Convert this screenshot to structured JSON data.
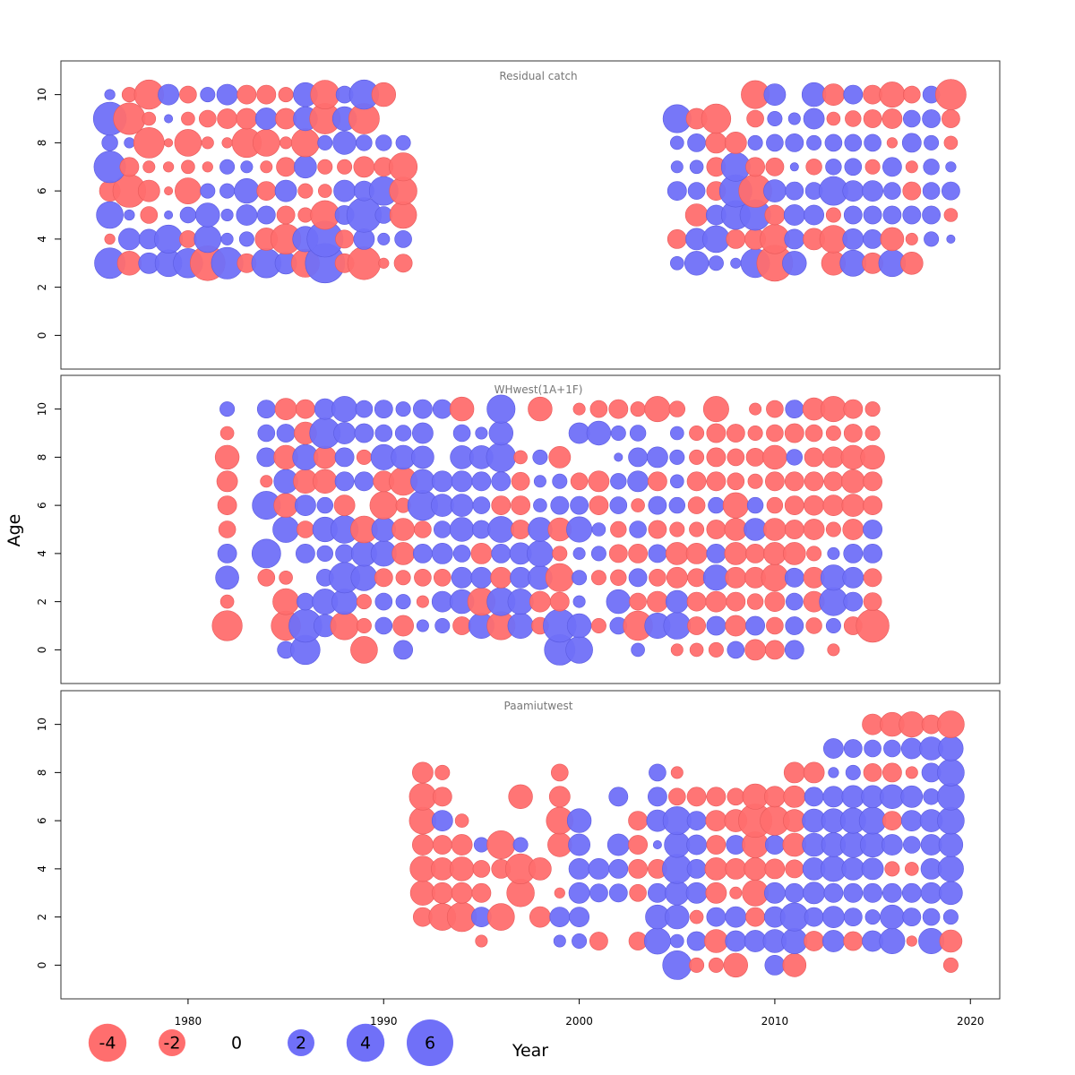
{
  "colors": {
    "positive": "#7070F8",
    "negative": "#FF6E6E",
    "frame": "#333333",
    "title_text": "#777777"
  },
  "chart_data": {
    "type": "bubble-residual",
    "xlabel": "Year",
    "ylabel": "Age",
    "xlim": [
      1973.5,
      2021.5
    ],
    "x_ticks": [
      1980,
      1990,
      2000,
      2010,
      2020
    ],
    "ylim": [
      -1.4,
      11.4
    ],
    "y_ticks": [
      0,
      2,
      4,
      6,
      8,
      10
    ],
    "legend": {
      "values": [
        -4,
        -2,
        0,
        2,
        4,
        6
      ],
      "labels": [
        "-4",
        "-2",
        "0",
        "2",
        "4",
        "6"
      ]
    },
    "panels": [
      {
        "title": "Residual catch",
        "years": [
          1976,
          1977,
          1978,
          1979,
          1980,
          1981,
          1982,
          1983,
          1984,
          1985,
          1986,
          1987,
          1988,
          1989,
          1990,
          1991,
          2005,
          2006,
          2007,
          2008,
          2009,
          2010,
          2011,
          2012,
          2013,
          2014,
          2015,
          2016,
          2017,
          2018,
          2019
        ],
        "ages": [
          3,
          4,
          5,
          6,
          7,
          8,
          9,
          10
        ],
        "residuals": [
          [
            2.6,
            -1.6,
            1.2,
            2.0,
            2.4,
            -3.4,
            2.8,
            -1.0,
            2.4,
            1.3,
            -2.2,
            4.3,
            -1.0,
            -3.0,
            -0.3,
            -0.9,
            0.5,
            1.6,
            0.6,
            0.3,
            2.3,
            -3.6,
            1.6,
            0.0,
            -1.6,
            1.9,
            -1.2,
            2.0,
            -1.4,
            0.0,
            0.0
          ],
          [
            -0.3,
            1.3,
            1.1,
            2.2,
            -0.8,
            2.0,
            0.4,
            0.6,
            -1.4,
            -2.5,
            1.8,
            3.6,
            -0.9,
            1.2,
            0.4,
            0.8,
            -1.0,
            1.3,
            2.0,
            -1.0,
            -1.2,
            -2.4,
            1.1,
            -1.3,
            -2.1,
            1.2,
            1.0,
            -1.5,
            -0.4,
            0.6,
            0.2
          ],
          [
            2.0,
            0.3,
            -0.8,
            0.2,
            0.7,
            1.6,
            0.4,
            1.2,
            0.9,
            -0.9,
            -0.6,
            -2.3,
            1.0,
            3.3,
            0.8,
            -2.0,
            0.0,
            -1.4,
            1.1,
            2.3,
            2.6,
            -1.1,
            1.2,
            1.1,
            -0.6,
            0.9,
            0.9,
            0.9,
            0.9,
            0.9,
            -0.5
          ],
          [
            -1.2,
            -3.0,
            -1.3,
            -0.2,
            -1.9,
            0.6,
            0.6,
            1.7,
            -1.0,
            1.3,
            -0.6,
            -0.5,
            1.3,
            1.1,
            2.3,
            -2.1,
            1.0,
            0.8,
            -1.0,
            2.9,
            -3.0,
            1.4,
            0.9,
            0.8,
            2.3,
            1.2,
            1.2,
            0.8,
            -0.9,
            0.8,
            0.9
          ],
          [
            2.8,
            -1.0,
            -0.4,
            -0.3,
            -0.5,
            -0.3,
            0.6,
            0.4,
            -0.4,
            -1.0,
            1.4,
            -0.6,
            -0.6,
            -1.2,
            -1.0,
            -2.2,
            0.4,
            0.5,
            -1.0,
            2.3,
            -1.0,
            -0.9,
            0.2,
            -0.7,
            0.7,
            0.8,
            -0.6,
            1.0,
            -0.4,
            0.7,
            0.3
          ],
          [
            0.7,
            0.3,
            -2.6,
            -0.2,
            -2.0,
            -0.4,
            -0.3,
            -2.4,
            -2.0,
            -0.4,
            -2.2,
            0.6,
            1.5,
            0.7,
            0.7,
            0.6,
            0.5,
            0.9,
            -1.2,
            -1.3,
            0.6,
            0.8,
            0.9,
            0.6,
            0.8,
            0.8,
            0.8,
            -0.3,
            1.0,
            0.6,
            -0.5
          ],
          [
            3.0,
            -2.8,
            -0.5,
            0.2,
            -0.5,
            -0.8,
            -1.1,
            -1.2,
            1.3,
            -1.2,
            1.6,
            -2.6,
            1.6,
            -2.6,
            0.0,
            0.0,
            2.2,
            -1.2,
            -2.4,
            0.0,
            -0.8,
            0.6,
            0.4,
            1.2,
            -0.5,
            -0.7,
            -0.9,
            -1.1,
            0.8,
            0.9,
            -0.9
          ],
          [
            0.3,
            -0.6,
            -2.4,
            1.2,
            -0.8,
            0.6,
            1.2,
            -1.0,
            -1.0,
            -0.6,
            1.6,
            -2.3,
            0.8,
            2.4,
            -1.6,
            0.0,
            0.0,
            0.0,
            0.0,
            0.0,
            -2.2,
            1.3,
            0.0,
            1.6,
            -1.3,
            1.0,
            -1.0,
            -1.8,
            -0.8,
            0.8,
            -2.6
          ]
        ]
      },
      {
        "title": "WHwest(1A+1F)",
        "years": [
          1982,
          1983,
          1984,
          1985,
          1986,
          1987,
          1988,
          1989,
          1990,
          1991,
          1992,
          1993,
          1994,
          1995,
          1996,
          1997,
          1998,
          1999,
          2000,
          2001,
          2002,
          2003,
          2004,
          2005,
          2006,
          2007,
          2008,
          2009,
          2010,
          2011,
          2012,
          2013,
          2014,
          2015
        ],
        "ages": [
          0,
          1,
          2,
          3,
          4,
          5,
          6,
          7,
          8,
          9,
          10
        ],
        "residuals": [
          [
            0.0,
            0.0,
            0.0,
            0.8,
            2.4,
            0.0,
            0.0,
            -2.0,
            0.0,
            1.0,
            0.0,
            0.0,
            0.0,
            0.0,
            0.0,
            0.0,
            0.0,
            2.6,
            2.0,
            0.0,
            0.0,
            0.5,
            0.0,
            -0.4,
            -0.5,
            -0.6,
            0.8,
            -1.2,
            -1.0,
            1.0,
            0.0,
            -0.4,
            0.0,
            0.0
          ],
          [
            -2.5,
            0.0,
            0.0,
            -2.4,
            3.0,
            1.4,
            -2.2,
            -0.6,
            0.8,
            -1.2,
            0.4,
            0.6,
            -0.9,
            1.8,
            -2.2,
            1.8,
            -0.8,
            3.0,
            1.6,
            -0.6,
            0.8,
            -2.4,
            1.8,
            2.0,
            -0.9,
            1.0,
            -1.2,
            1.0,
            -0.8,
            0.9,
            -0.7,
            0.6,
            -0.9,
            -3.0
          ],
          [
            -0.5,
            0.0,
            0.0,
            -1.9,
            0.8,
            1.8,
            1.8,
            -0.6,
            0.8,
            0.6,
            -0.4,
            1.2,
            1.6,
            -2.1,
            2.2,
            1.8,
            -1.2,
            -1.0,
            0.4,
            0.0,
            1.6,
            -0.8,
            -1.2,
            1.4,
            -1.0,
            -1.2,
            -1.0,
            -0.7,
            -1.1,
            0.8,
            -1.2,
            2.2,
            1.0,
            -0.9
          ],
          [
            1.5,
            0.0,
            -0.8,
            -0.5,
            0.0,
            0.8,
            2.6,
            1.9,
            -0.9,
            -0.6,
            -0.8,
            -0.8,
            1.2,
            1.2,
            -1.2,
            1.2,
            1.6,
            -2.2,
            0.6,
            -0.6,
            -0.7,
            0.9,
            -0.8,
            -1.2,
            -0.9,
            1.8,
            -1.2,
            -1.2,
            -2.0,
            1.0,
            -1.2,
            1.8,
            1.2,
            -0.9
          ],
          [
            1.0,
            0.0,
            2.3,
            0.0,
            1.0,
            0.7,
            0.9,
            1.8,
            1.8,
            -1.4,
            1.0,
            1.2,
            0.8,
            -1.2,
            1.0,
            1.3,
            1.9,
            -0.6,
            0.4,
            0.6,
            -0.9,
            -1.0,
            0.9,
            -1.4,
            -1.2,
            1.0,
            -1.4,
            -1.0,
            -1.4,
            -1.4,
            -0.6,
            0.4,
            1.0,
            1.0
          ],
          [
            -0.8,
            0.0,
            0.0,
            1.9,
            -0.8,
            1.7,
            2.1,
            -2.0,
            1.6,
            -1.4,
            -0.8,
            0.8,
            1.6,
            0.9,
            1.9,
            -1.0,
            1.6,
            -1.5,
            1.8,
            0.5,
            -0.7,
            0.8,
            -0.9,
            -0.6,
            -0.6,
            -1.0,
            -1.4,
            1.4,
            -1.4,
            -1.0,
            -1.2,
            -0.6,
            -1.2,
            1.0
          ],
          [
            -1.0,
            0.0,
            2.2,
            -1.6,
            1.2,
            0.7,
            -1.2,
            0.0,
            -2.1,
            -0.6,
            2.5,
            1.4,
            1.4,
            0.8,
            -1.0,
            -1.0,
            0.5,
            0.9,
            0.9,
            -1.0,
            0.8,
            -0.5,
            0.9,
            0.7,
            -0.8,
            0.7,
            -1.8,
            0.7,
            -0.7,
            -1.0,
            -1.1,
            -1.2,
            -1.4,
            -1.0
          ],
          [
            -1.2,
            0.0,
            -0.4,
            1.6,
            -1.6,
            -1.6,
            1.0,
            1.0,
            -1.2,
            -2.2,
            1.6,
            1.2,
            1.2,
            1.0,
            1.0,
            -0.9,
            0.4,
            0.6,
            -0.8,
            -1.2,
            0.7,
            1.2,
            -1.0,
            0.5,
            -1.0,
            -1.0,
            -0.8,
            -0.6,
            -1.0,
            -1.0,
            -1.0,
            -1.0,
            -1.5,
            -1.0
          ],
          [
            -1.6,
            0.0,
            1.0,
            -1.6,
            1.8,
            -1.4,
            1.0,
            -0.6,
            1.8,
            1.6,
            1.4,
            0.0,
            1.5,
            1.5,
            2.4,
            -0.5,
            0.6,
            -1.3,
            0.0,
            0.0,
            0.2,
            1.0,
            1.2,
            0.6,
            -0.6,
            -1.0,
            -0.8,
            -0.9,
            -1.6,
            0.7,
            -1.0,
            -1.2,
            -1.6,
            -1.6
          ],
          [
            -0.5,
            0.0,
            0.8,
            0.9,
            -1.4,
            2.6,
            1.3,
            1.0,
            0.8,
            0.7,
            1.2,
            0.0,
            0.8,
            0.4,
            1.6,
            0.0,
            0.0,
            0.0,
            1.2,
            1.6,
            0.6,
            0.7,
            0.0,
            0.5,
            -0.6,
            -1.0,
            -0.9,
            -0.6,
            -0.8,
            -1.0,
            -0.8,
            -0.6,
            -0.9,
            -0.6
          ],
          [
            0.6,
            0.0,
            0.9,
            -1.3,
            -1.0,
            1.2,
            1.8,
            0.8,
            0.9,
            0.6,
            1.0,
            1.0,
            -1.6,
            0.0,
            2.2,
            0.0,
            -1.6,
            0.0,
            -0.4,
            -0.8,
            -1.0,
            -0.6,
            -1.8,
            -0.7,
            0.0,
            -1.8,
            0.0,
            -0.4,
            -0.8,
            0.9,
            -1.4,
            -1.8,
            -1.0,
            -0.6
          ]
        ]
      },
      {
        "title": "Paamiutwest",
        "years": [
          1992,
          1993,
          1994,
          1995,
          1996,
          1997,
          1998,
          1999,
          2000,
          2001,
          2002,
          2003,
          2004,
          2005,
          2006,
          2007,
          2008,
          2009,
          2010,
          2011,
          2012,
          2013,
          2014,
          2015,
          2016,
          2017,
          2018,
          2019
        ],
        "ages": [
          0,
          1,
          2,
          3,
          4,
          5,
          6,
          7,
          8,
          9,
          10
        ],
        "residuals": [
          [
            0.0,
            0.0,
            0.0,
            0.0,
            0.0,
            0.0,
            0.0,
            0.0,
            0.0,
            0.0,
            0.0,
            0.0,
            0.0,
            2.3,
            -0.6,
            -0.6,
            -1.6,
            0.0,
            1.1,
            -1.5,
            0.0,
            0.0,
            0.0,
            0.0,
            0.0,
            0.0,
            0.0,
            -0.6
          ],
          [
            0.0,
            0.0,
            0.0,
            -0.4,
            0.0,
            0.0,
            0.0,
            0.4,
            0.6,
            -0.9,
            0.0,
            -0.9,
            1.9,
            0.5,
            1.0,
            -1.5,
            1.2,
            1.3,
            1.5,
            1.8,
            -1.1,
            1.3,
            -1.0,
            1.2,
            1.8,
            -0.3,
            1.8,
            -1.4
          ],
          [
            -1.0,
            -2.0,
            -2.4,
            1.1,
            -2.0,
            0.0,
            -1.2,
            1.1,
            1.1,
            0.0,
            0.0,
            0.0,
            1.6,
            1.6,
            -0.5,
            1.0,
            1.2,
            -1.0,
            1.2,
            2.2,
            1.0,
            1.3,
            0.9,
            0.6,
            1.6,
            0.9,
            0.8,
            0.6
          ],
          [
            -1.7,
            -1.2,
            -1.2,
            -1.0,
            0.0,
            -2.1,
            0.0,
            -0.3,
            1.2,
            0.9,
            0.9,
            -0.8,
            1.0,
            1.6,
            1.2,
            -1.2,
            -0.4,
            -1.9,
            1.2,
            1.0,
            1.3,
            1.0,
            1.0,
            1.0,
            1.0,
            1.0,
            1.2,
            1.5
          ],
          [
            -1.8,
            -1.4,
            -1.6,
            -0.8,
            -1.0,
            -2.5,
            -1.4,
            0.0,
            1.2,
            1.2,
            1.0,
            -1.0,
            -1.0,
            2.4,
            1.0,
            -1.4,
            -1.2,
            -1.4,
            -1.1,
            -0.9,
            1.4,
            1.8,
            1.4,
            1.3,
            -0.6,
            -0.5,
            1.2,
            1.8
          ],
          [
            -1.2,
            -1.0,
            -1.2,
            0.6,
            -2.2,
            0.6,
            0.0,
            -1.6,
            1.3,
            0.0,
            1.3,
            -1.0,
            0.2,
            1.8,
            1.1,
            -1.0,
            1.0,
            -1.9,
            1.0,
            -1.5,
            1.5,
            1.6,
            1.8,
            1.7,
            1.2,
            0.8,
            1.2,
            1.6
          ],
          [
            -2.0,
            1.2,
            -0.5,
            0.0,
            0.0,
            0.0,
            0.0,
            -2.0,
            1.6,
            0.0,
            0.0,
            -1.0,
            1.3,
            2.2,
            1.0,
            -1.2,
            -1.4,
            -3.1,
            -2.4,
            -1.4,
            1.5,
            1.6,
            1.8,
            2.0,
            -1.0,
            1.2,
            1.4,
            2.0
          ],
          [
            -2.0,
            -1.0,
            0.0,
            0.0,
            0.0,
            -1.6,
            0.0,
            -1.2,
            0.0,
            0.0,
            1.0,
            0.0,
            1.0,
            -0.8,
            -1.0,
            -1.0,
            -0.8,
            -1.8,
            -1.2,
            -1.3,
            1.0,
            1.2,
            1.4,
            1.4,
            1.6,
            1.3,
            0.7,
            2.0
          ],
          [
            -1.2,
            -0.6,
            0.0,
            0.0,
            0.0,
            0.0,
            0.0,
            -0.8,
            0.0,
            0.0,
            0.0,
            0.0,
            0.8,
            -0.4,
            0.0,
            0.0,
            0.0,
            0.0,
            0.0,
            -1.2,
            -1.2,
            0.3,
            0.6,
            -0.9,
            -1.0,
            -0.4,
            1.0,
            2.0
          ],
          [
            0.0,
            0.0,
            0.0,
            0.0,
            0.0,
            0.0,
            0.0,
            0.0,
            0.0,
            0.0,
            0.0,
            0.0,
            0.0,
            0.0,
            0.0,
            0.0,
            0.0,
            0.0,
            0.0,
            0.0,
            0.0,
            1.1,
            0.9,
            0.8,
            0.8,
            1.2,
            1.5,
            1.7
          ],
          [
            0.0,
            0.0,
            0.0,
            0.0,
            0.0,
            0.0,
            0.0,
            0.0,
            0.0,
            0.0,
            0.0,
            0.0,
            0.0,
            0.0,
            0.0,
            0.0,
            0.0,
            0.0,
            0.0,
            0.0,
            0.0,
            0.0,
            0.0,
            -1.2,
            -1.6,
            -1.8,
            -1.0,
            -2.0
          ]
        ]
      }
    ]
  }
}
